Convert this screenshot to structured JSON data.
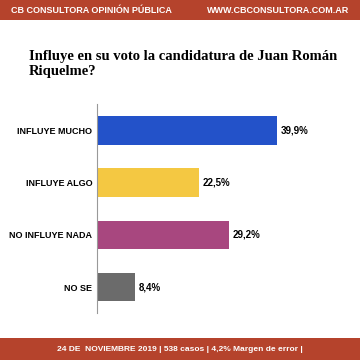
{
  "chart_data": {
    "type": "bar",
    "orientation": "horizontal",
    "title": "Influye en su voto la candidatura de Juan Román Riquelme?",
    "categories": [
      "INFLUYE MUCHO",
      "INFLUYE ALGO",
      "NO INFLUYE NADA",
      "NO SE"
    ],
    "values": [
      39.9,
      22.5,
      29.2,
      8.4
    ],
    "value_labels": [
      "39,9%",
      "22,5%",
      "29,2%",
      "8,4%"
    ],
    "colors": [
      "#2352c9",
      "#f4c842",
      "#a8477f",
      "#6b6b6b"
    ],
    "data_labels": true,
    "grid": false,
    "tick_labels": "y",
    "annotations": [
      "CB CONSULTORA OPINIÓN PÚBLICA",
      "WWW.CBCONSULTORA.COM.AR",
      "24 DE  NOVIEMBRE 2019 | 538 casos | 4,2% Margen de error |"
    ]
  }
}
